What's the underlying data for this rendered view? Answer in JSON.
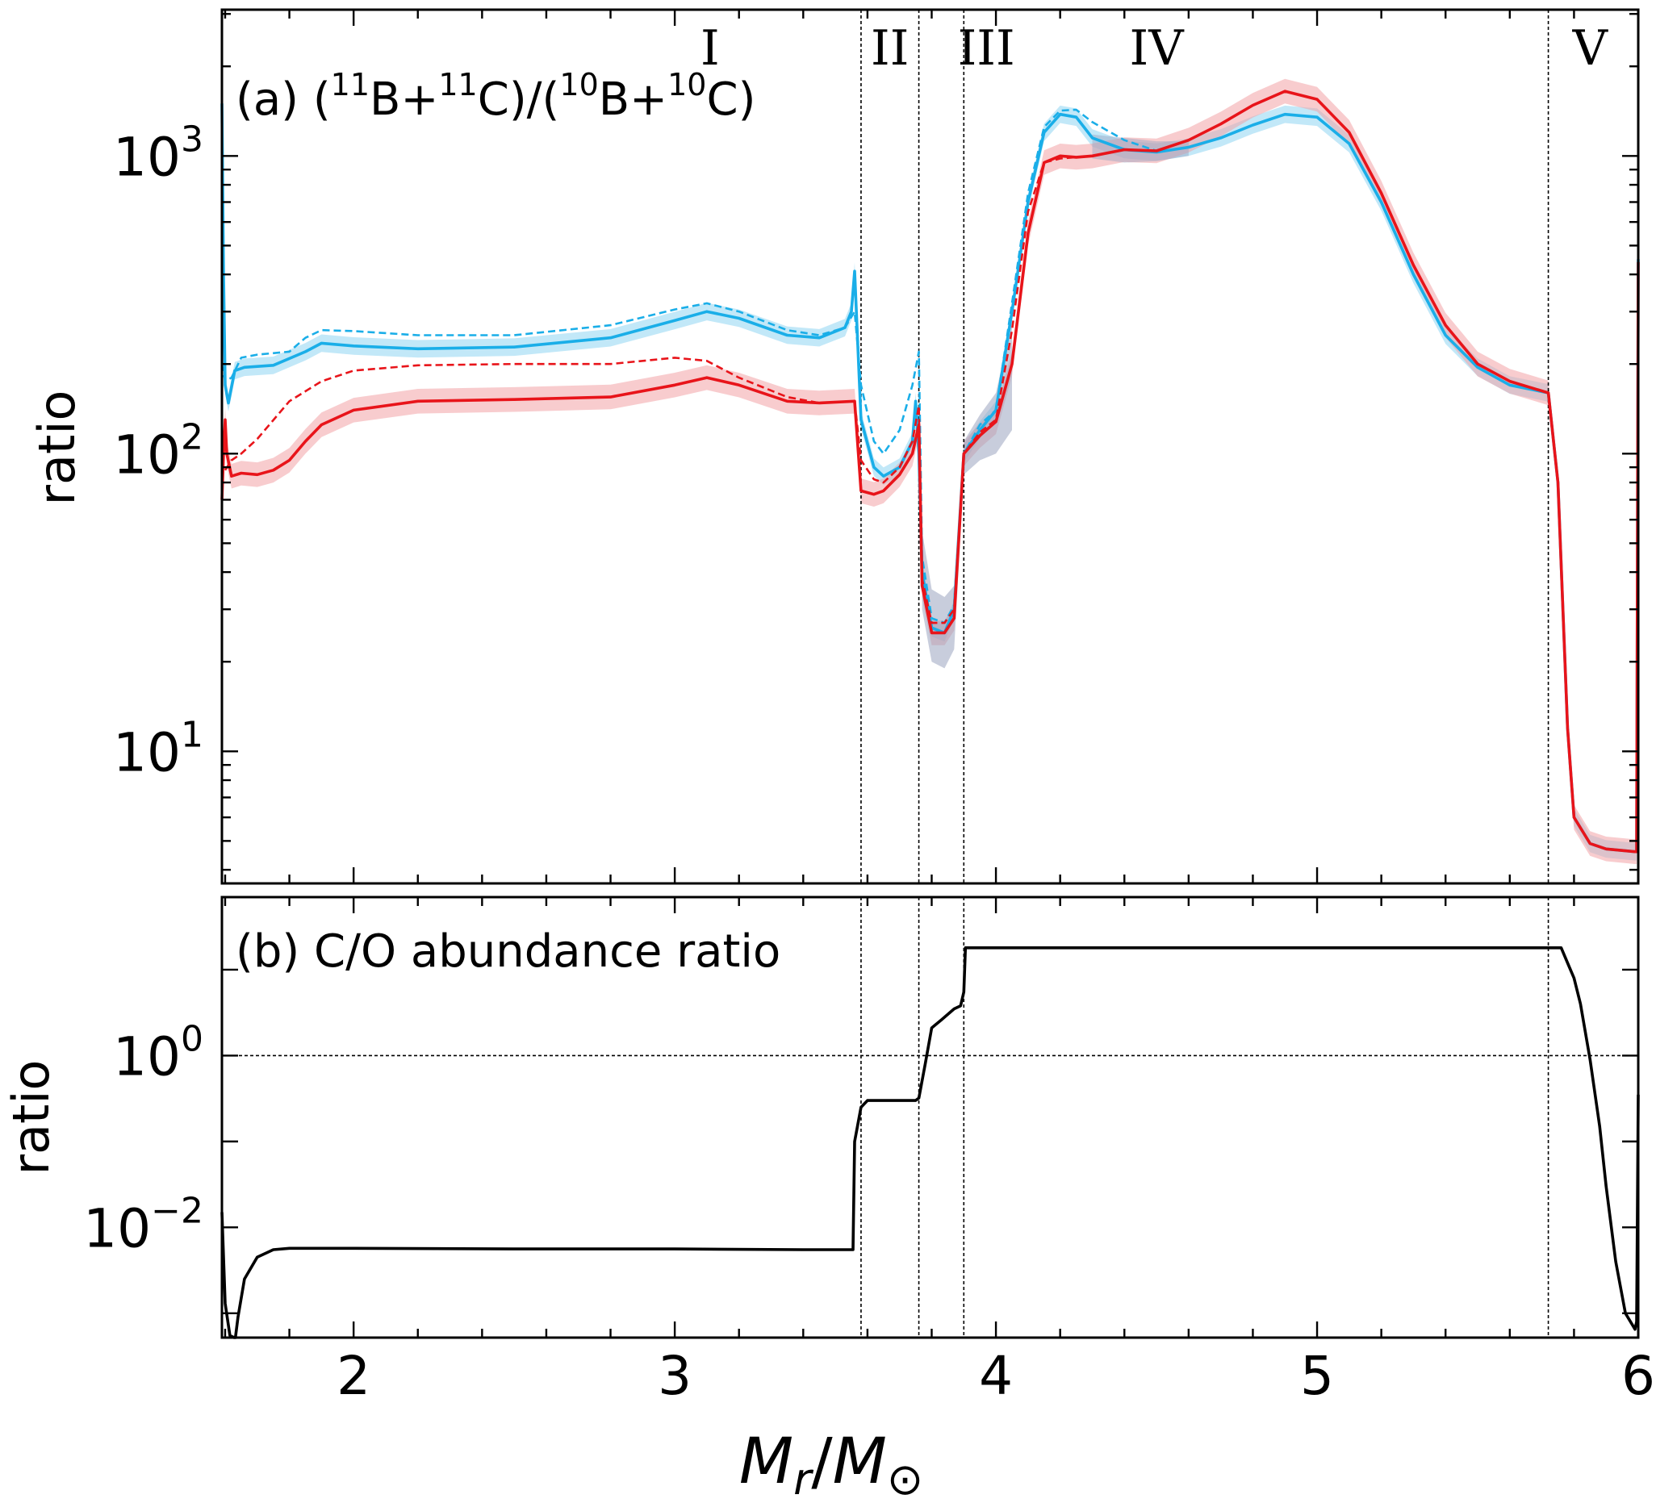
{
  "figure": {
    "xlabel_main": "M",
    "xlabel_sub1": "r",
    "xlabel_slash": "/",
    "xlabel_sub2": "⊙"
  },
  "colors": {
    "blue": "#1aaee8",
    "red": "#e8141a",
    "blue_band": "#8fd6f2",
    "red_band": "#f3a3a6",
    "overlap_band": "#9aa4c0"
  },
  "chart_data": [
    {
      "type": "line",
      "panel": "a",
      "label_prefix": "(a) (",
      "label_sup1": "11",
      "label_mid1": "B+",
      "label_sup2": "11",
      "label_mid2": "C)/(",
      "label_sup3": "10",
      "label_mid3": "B+",
      "label_sup4": "10",
      "label_end": "C)",
      "ylabel": "ratio",
      "yscale": "log",
      "xlim": [
        1.59,
        6.0
      ],
      "ylim": [
        3.6,
        3100
      ],
      "xticks": [
        "2",
        "3",
        "4",
        "5",
        "6"
      ],
      "yticks": [
        {
          "value": 10,
          "base": "10",
          "exp": "1"
        },
        {
          "value": 100,
          "base": "10",
          "exp": "2"
        },
        {
          "value": 1000,
          "base": "10",
          "exp": "3"
        }
      ],
      "zone_boundaries": [
        3.58,
        3.76,
        3.9,
        5.72
      ],
      "zones": [
        {
          "label": "I",
          "x": 3.11
        },
        {
          "label": "II",
          "x": 3.67
        },
        {
          "label": "III",
          "x": 3.97
        },
        {
          "label": "IV",
          "x": 4.5
        },
        {
          "label": "V",
          "x": 5.85
        }
      ],
      "series": [
        {
          "color": "blue",
          "style": "solid",
          "band": 0.07,
          "x": [
            1.59,
            1.595,
            1.6,
            1.61,
            1.63,
            1.66,
            1.75,
            1.85,
            1.9,
            2.0,
            2.2,
            2.5,
            2.8,
            3.0,
            3.1,
            3.2,
            3.35,
            3.45,
            3.53,
            3.55,
            3.56,
            3.58,
            3.62,
            3.65,
            3.7,
            3.74,
            3.75,
            3.76,
            3.77,
            3.8,
            3.84,
            3.87,
            3.9,
            3.95,
            4.0,
            4.05,
            4.1,
            4.15,
            4.2,
            4.25,
            4.3,
            4.4,
            4.5,
            4.6,
            4.7,
            4.8,
            4.9,
            5.0,
            5.1,
            5.2,
            5.3,
            5.4,
            5.5,
            5.6,
            5.72,
            5.75,
            5.78,
            5.8,
            5.85,
            5.9,
            5.99,
            5.995,
            6.0
          ],
          "y": [
            1500,
            400,
            170,
            148,
            190,
            195,
            198,
            220,
            235,
            230,
            225,
            228,
            245,
            280,
            300,
            285,
            250,
            245,
            265,
            300,
            410,
            130,
            90,
            84,
            90,
            110,
            150,
            100,
            40,
            26,
            25,
            30,
            100,
            120,
            140,
            300,
            700,
            1200,
            1380,
            1350,
            1150,
            1050,
            1030,
            1070,
            1150,
            1270,
            1380,
            1350,
            1100,
            700,
            400,
            250,
            195,
            170,
            160,
            80,
            12,
            6,
            4.9,
            4.7,
            4.6,
            4.6,
            450
          ]
        },
        {
          "color": "blue",
          "style": "dashed",
          "band": 0,
          "x": [
            1.59,
            1.6,
            1.62,
            1.65,
            1.7,
            1.8,
            1.85,
            1.9,
            2.0,
            2.2,
            2.5,
            2.8,
            3.0,
            3.1,
            3.2,
            3.35,
            3.45,
            3.53,
            3.56,
            3.58,
            3.62,
            3.65,
            3.7,
            3.74,
            3.76,
            3.77,
            3.8,
            3.84,
            3.87,
            3.9,
            3.95,
            4.0,
            4.05,
            4.1,
            4.15,
            4.2,
            4.25,
            4.3,
            4.4,
            4.5
          ],
          "y": [
            200,
            175,
            180,
            210,
            215,
            220,
            245,
            260,
            258,
            250,
            250,
            270,
            305,
            320,
            300,
            260,
            250,
            265,
            300,
            170,
            110,
            100,
            120,
            170,
            220,
            45,
            28,
            27,
            31,
            100,
            125,
            140,
            320,
            750,
            1250,
            1420,
            1430,
            1300,
            1130,
            1040
          ]
        },
        {
          "color": "red",
          "style": "solid",
          "band": 0.1,
          "x": [
            1.59,
            1.595,
            1.6,
            1.605,
            1.62,
            1.65,
            1.7,
            1.75,
            1.8,
            1.85,
            1.9,
            2.0,
            2.2,
            2.5,
            2.8,
            3.0,
            3.1,
            3.2,
            3.35,
            3.45,
            3.56,
            3.58,
            3.62,
            3.65,
            3.7,
            3.74,
            3.76,
            3.77,
            3.8,
            3.84,
            3.87,
            3.9,
            3.95,
            4.0,
            4.05,
            4.1,
            4.15,
            4.2,
            4.25,
            4.3,
            4.4,
            4.5,
            4.6,
            4.7,
            4.8,
            4.9,
            5.0,
            5.1,
            5.2,
            5.3,
            5.4,
            5.5,
            5.6,
            5.72,
            5.75,
            5.78,
            5.8,
            5.85,
            5.9,
            5.99,
            5.995,
            6.0
          ],
          "y": [
            70,
            100,
            130,
            100,
            84,
            86,
            85,
            88,
            95,
            110,
            125,
            140,
            150,
            152,
            155,
            170,
            180,
            170,
            150,
            148,
            150,
            75,
            73,
            75,
            85,
            100,
            125,
            36,
            25,
            25,
            28,
            100,
            115,
            128,
            200,
            550,
            950,
            1000,
            990,
            1000,
            1050,
            1040,
            1130,
            1280,
            1480,
            1650,
            1550,
            1200,
            750,
            430,
            270,
            200,
            175,
            160,
            80,
            12,
            6,
            4.9,
            4.7,
            4.6,
            4.6,
            440
          ]
        },
        {
          "color": "red",
          "style": "dashed",
          "band": 0,
          "x": [
            1.6,
            1.62,
            1.65,
            1.7,
            1.8,
            1.9,
            2.0,
            2.2,
            2.5,
            2.8,
            3.0,
            3.1,
            3.2,
            3.35,
            3.45,
            3.56,
            3.58,
            3.62,
            3.65,
            3.7,
            3.74,
            3.76,
            3.77,
            3.8,
            3.84,
            3.87,
            3.9,
            3.95,
            4.0,
            4.05,
            4.1,
            4.15,
            4.2,
            4.25,
            4.3
          ],
          "y": [
            88,
            95,
            100,
            112,
            150,
            175,
            190,
            198,
            200,
            200,
            210,
            205,
            180,
            155,
            148,
            150,
            95,
            82,
            80,
            90,
            110,
            145,
            38,
            27,
            27,
            30,
            100,
            118,
            130,
            260,
            650,
            950,
            980,
            990,
            1000
          ]
        }
      ]
    },
    {
      "type": "line",
      "panel": "b",
      "label": "(b) C/O abundance ratio",
      "ylabel": "ratio",
      "yscale": "log",
      "xlim": [
        1.59,
        6.0
      ],
      "ylim": [
        0.00052,
        70
      ],
      "yticks": [
        {
          "value": 0.01,
          "base": "10",
          "exp": "−2"
        },
        {
          "value": 1,
          "base": "10",
          "exp": "0"
        }
      ],
      "hline": 1,
      "zone_boundaries": [
        3.58,
        3.76,
        3.9,
        5.72
      ],
      "series": [
        {
          "color": "#000000",
          "style": "solid",
          "band": 0,
          "x": [
            1.59,
            1.6,
            1.615,
            1.628,
            1.632,
            1.64,
            1.66,
            1.7,
            1.75,
            1.8,
            2.0,
            2.5,
            3.0,
            3.4,
            3.55,
            3.555,
            3.56,
            3.58,
            3.6,
            3.7,
            3.75,
            3.76,
            3.78,
            3.8,
            3.83,
            3.87,
            3.89,
            3.9,
            3.905,
            3.95,
            4.5,
            5.0,
            5.5,
            5.76,
            5.78,
            5.8,
            5.82,
            5.85,
            5.88,
            5.9,
            5.93,
            5.96,
            5.985,
            5.99,
            5.995,
            6.0
          ],
          "y": [
            0.015,
            0.0013,
            0.00055,
            0.00045,
            0.0005,
            0.0009,
            0.0025,
            0.0045,
            0.0055,
            0.0057,
            0.0057,
            0.0056,
            0.0056,
            0.0055,
            0.0055,
            0.0055,
            0.1,
            0.25,
            0.3,
            0.3,
            0.3,
            0.32,
            0.8,
            2.1,
            2.6,
            3.5,
            3.8,
            5.5,
            18,
            18,
            18,
            18,
            18,
            18,
            12,
            8,
            4,
            0.9,
            0.15,
            0.03,
            0.004,
            0.001,
            0.0007,
            0.00065,
            0.0008,
            0.35
          ]
        }
      ]
    }
  ]
}
